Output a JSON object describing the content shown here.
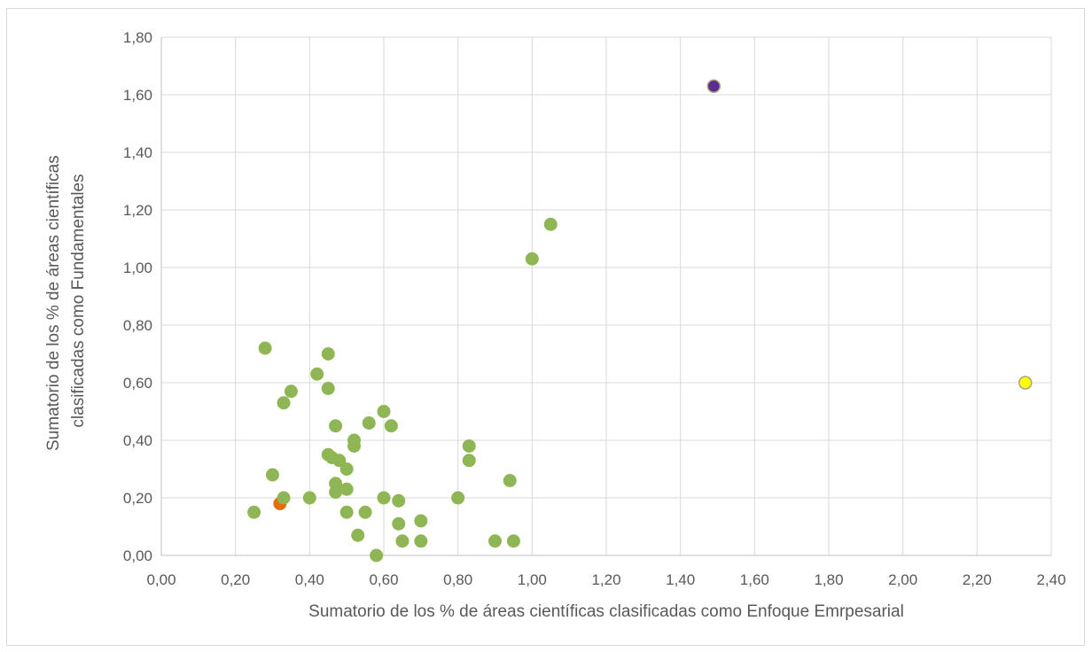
{
  "chart_data": {
    "type": "scatter",
    "title": "",
    "xlabel": "Sumatorio de los % de áreas científicas clasificadas como Enfoque Emrpesarial",
    "ylabel_lines": [
      "Sumatorio de los % de áreas científicas",
      "clasificadas como Fundamentales"
    ],
    "xlim": [
      0,
      2.4
    ],
    "ylim": [
      0,
      1.8
    ],
    "x_ticks": [
      "0,00",
      "0,20",
      "0,40",
      "0,60",
      "0,80",
      "1,00",
      "1,20",
      "1,40",
      "1,60",
      "1,80",
      "2,00",
      "2,20",
      "2,40"
    ],
    "y_ticks": [
      "0,00",
      "0,20",
      "0,40",
      "0,60",
      "0,80",
      "1,00",
      "1,20",
      "1,40",
      "1,60",
      "1,80"
    ],
    "grid": true,
    "legend": "none",
    "colors": {
      "default": "#8fb654",
      "highlight_orange": "#e36c09",
      "highlight_purple": "#5b2c91",
      "highlight_yellow": "#ffff00",
      "highlight_stroke": "#a9a57c",
      "grid": "#d9d9d9",
      "axis": "#bfbfbf"
    },
    "points": [
      {
        "x": 0.25,
        "y": 0.15
      },
      {
        "x": 0.28,
        "y": 0.72
      },
      {
        "x": 0.3,
        "y": 0.28
      },
      {
        "x": 0.32,
        "y": 0.18,
        "color": "highlight_orange"
      },
      {
        "x": 0.33,
        "y": 0.2
      },
      {
        "x": 0.33,
        "y": 0.53
      },
      {
        "x": 0.35,
        "y": 0.57
      },
      {
        "x": 0.4,
        "y": 0.2
      },
      {
        "x": 0.42,
        "y": 0.63
      },
      {
        "x": 0.45,
        "y": 0.7
      },
      {
        "x": 0.45,
        "y": 0.58
      },
      {
        "x": 0.45,
        "y": 0.35
      },
      {
        "x": 0.46,
        "y": 0.34
      },
      {
        "x": 0.47,
        "y": 0.25
      },
      {
        "x": 0.47,
        "y": 0.22
      },
      {
        "x": 0.47,
        "y": 0.45
      },
      {
        "x": 0.48,
        "y": 0.33
      },
      {
        "x": 0.5,
        "y": 0.3
      },
      {
        "x": 0.5,
        "y": 0.23
      },
      {
        "x": 0.5,
        "y": 0.15
      },
      {
        "x": 0.52,
        "y": 0.4
      },
      {
        "x": 0.52,
        "y": 0.38
      },
      {
        "x": 0.53,
        "y": 0.07
      },
      {
        "x": 0.55,
        "y": 0.15
      },
      {
        "x": 0.56,
        "y": 0.46
      },
      {
        "x": 0.58,
        "y": 0.0
      },
      {
        "x": 0.6,
        "y": 0.5
      },
      {
        "x": 0.6,
        "y": 0.2
      },
      {
        "x": 0.62,
        "y": 0.45
      },
      {
        "x": 0.64,
        "y": 0.19
      },
      {
        "x": 0.64,
        "y": 0.11
      },
      {
        "x": 0.65,
        "y": 0.05
      },
      {
        "x": 0.7,
        "y": 0.12
      },
      {
        "x": 0.7,
        "y": 0.05
      },
      {
        "x": 0.8,
        "y": 0.2
      },
      {
        "x": 0.83,
        "y": 0.38
      },
      {
        "x": 0.83,
        "y": 0.33
      },
      {
        "x": 0.9,
        "y": 0.05
      },
      {
        "x": 0.94,
        "y": 0.26
      },
      {
        "x": 0.95,
        "y": 0.05
      },
      {
        "x": 1.0,
        "y": 1.03
      },
      {
        "x": 1.05,
        "y": 1.15
      },
      {
        "x": 1.49,
        "y": 1.63,
        "color": "highlight_purple",
        "stroke": true
      },
      {
        "x": 2.33,
        "y": 0.6,
        "color": "highlight_yellow",
        "stroke": true
      }
    ]
  }
}
